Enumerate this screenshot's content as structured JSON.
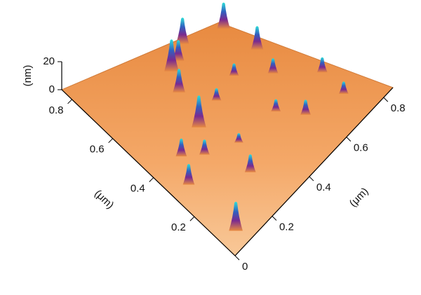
{
  "chart_data": {
    "type": "surface3d",
    "x_label": "(μm)",
    "y_label": "(μm)",
    "z_label": "(nm)",
    "xlim": [
      0,
      0.85
    ],
    "ylim": [
      0,
      0.85
    ],
    "zlim": [
      0,
      20
    ],
    "xticks": [
      0,
      0.2,
      0.4,
      0.6,
      0.8
    ],
    "yticks": [
      0.2,
      0.4,
      0.6,
      0.8
    ],
    "zticks": [
      0,
      20
    ],
    "color": "#f0a060",
    "x": [
      0.07,
      0.08,
      0.15,
      0.22,
      0.28,
      0.3,
      0.38,
      0.45,
      0.45,
      0.55,
      0.52,
      0.6,
      0.7,
      0.75,
      0.8,
      0.78,
      0.82,
      0.62,
      0.6,
      0.35
    ],
    "y": [
      0.06,
      0.3,
      0.4,
      0.35,
      0.18,
      0.45,
      0.62,
      0.5,
      0.72,
      0.3,
      0.75,
      0.2,
      0.45,
      0.15,
      0.3,
      0.6,
      0.8,
      0.82,
      0.55,
      0.3
    ],
    "z": [
      20,
      14,
      12,
      10,
      12,
      22,
      16,
      8,
      22,
      8,
      14,
      10,
      10,
      8,
      10,
      16,
      18,
      18,
      8,
      6
    ]
  }
}
